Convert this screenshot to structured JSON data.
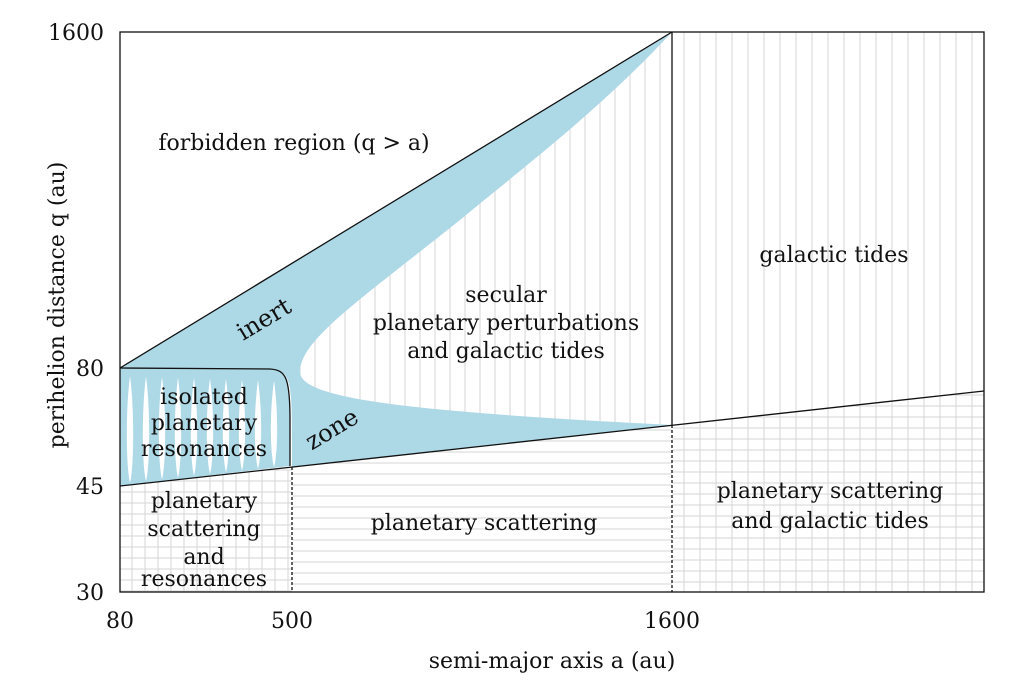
{
  "axes": {
    "x": {
      "label": "semi-major axis a (au)",
      "ticks": [
        "80",
        "500",
        "1600"
      ]
    },
    "y": {
      "label": "perihelion distance q (au)",
      "ticks": [
        "1600",
        "80",
        "45",
        "30"
      ]
    }
  },
  "regions": {
    "forbidden": "forbidden region (q > a)",
    "inert": "inert",
    "zone": "zone",
    "secular": [
      "secular",
      "planetary perturbations",
      "and galactic tides"
    ],
    "galactic": "galactic tides",
    "isolated": [
      "isolated",
      "planetary",
      "resonances"
    ],
    "scatter_res": [
      "planetary",
      "scattering",
      "and",
      "resonances"
    ],
    "scatter": "planetary scattering",
    "scatter_gal": [
      "planetary scattering",
      "and galactic tides"
    ]
  },
  "colors": {
    "inert_fill": "#add8e6",
    "grid": "#d6d6d6",
    "line": "#111111",
    "background": "#ffffff"
  }
}
